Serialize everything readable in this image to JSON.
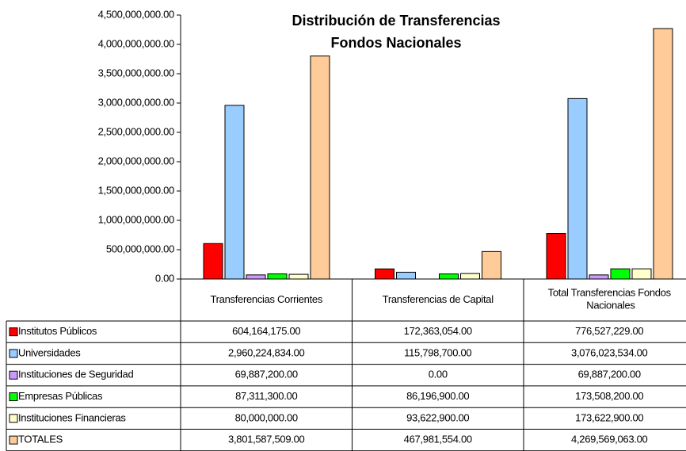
{
  "chart_data": {
    "type": "bar",
    "title_lines": [
      "Distribución de Transferencias",
      "Fondos Nacionales"
    ],
    "categories": [
      "Transferencias Corrientes",
      "Transferencias de Capital",
      "Total Transferencias Fondos Nacionales"
    ],
    "series": [
      {
        "name": "Institutos Públicos",
        "color": "#ff0000",
        "values": [
          604164175,
          172363054,
          776527229
        ],
        "value_labels": [
          "604,164,175.00",
          "172,363,054.00",
          "776,527,229.00"
        ]
      },
      {
        "name": "Universidades",
        "color": "#99ccff",
        "values": [
          2960224834,
          115798700,
          3076023534
        ],
        "value_labels": [
          "2,960,224,834.00",
          "115,798,700.00",
          "3,076,023,534.00"
        ]
      },
      {
        "name": "Instituciones de Seguridad",
        "color": "#cc99ff",
        "values": [
          69887200,
          0,
          69887200
        ],
        "value_labels": [
          "69,887,200.00",
          "0.00",
          "69,887,200.00"
        ]
      },
      {
        "name": "Empresas Públicas",
        "color": "#00ff00",
        "values": [
          87311300,
          86196900,
          173508200
        ],
        "value_labels": [
          "87,311,300.00",
          "86,196,900.00",
          "173,508,200.00"
        ]
      },
      {
        "name": "Instituciones Financieras",
        "color": "#ffffcc",
        "values": [
          80000000,
          93622900,
          173622900
        ],
        "value_labels": [
          "80,000,000.00",
          "93,622,900.00",
          "173,622,900.00"
        ]
      },
      {
        "name": "TOTALES",
        "color": "#ffcc99",
        "values": [
          3801587509,
          467981554,
          4269569063
        ],
        "value_labels": [
          "3,801,587,509.00",
          "467,981,554.00",
          "4,269,569,063.00"
        ]
      }
    ],
    "ylim": [
      0,
      4500000000
    ],
    "yticks": [
      {
        "value": 0,
        "label": "0.00"
      },
      {
        "value": 500000000,
        "label": "500,000,000.00"
      },
      {
        "value": 1000000000,
        "label": "1,000,000,000.00"
      },
      {
        "value": 1500000000,
        "label": "1,500,000,000.00"
      },
      {
        "value": 2000000000,
        "label": "2,000,000,000.00"
      },
      {
        "value": 2500000000,
        "label": "2,500,000,000.00"
      },
      {
        "value": 3000000000,
        "label": "3,000,000,000.00"
      },
      {
        "value": 3500000000,
        "label": "3,500,000,000.00"
      },
      {
        "value": 4000000000,
        "label": "4,000,000,000.00"
      },
      {
        "value": 4500000000,
        "label": "4,500,000,000.00"
      }
    ],
    "data_table": true
  }
}
